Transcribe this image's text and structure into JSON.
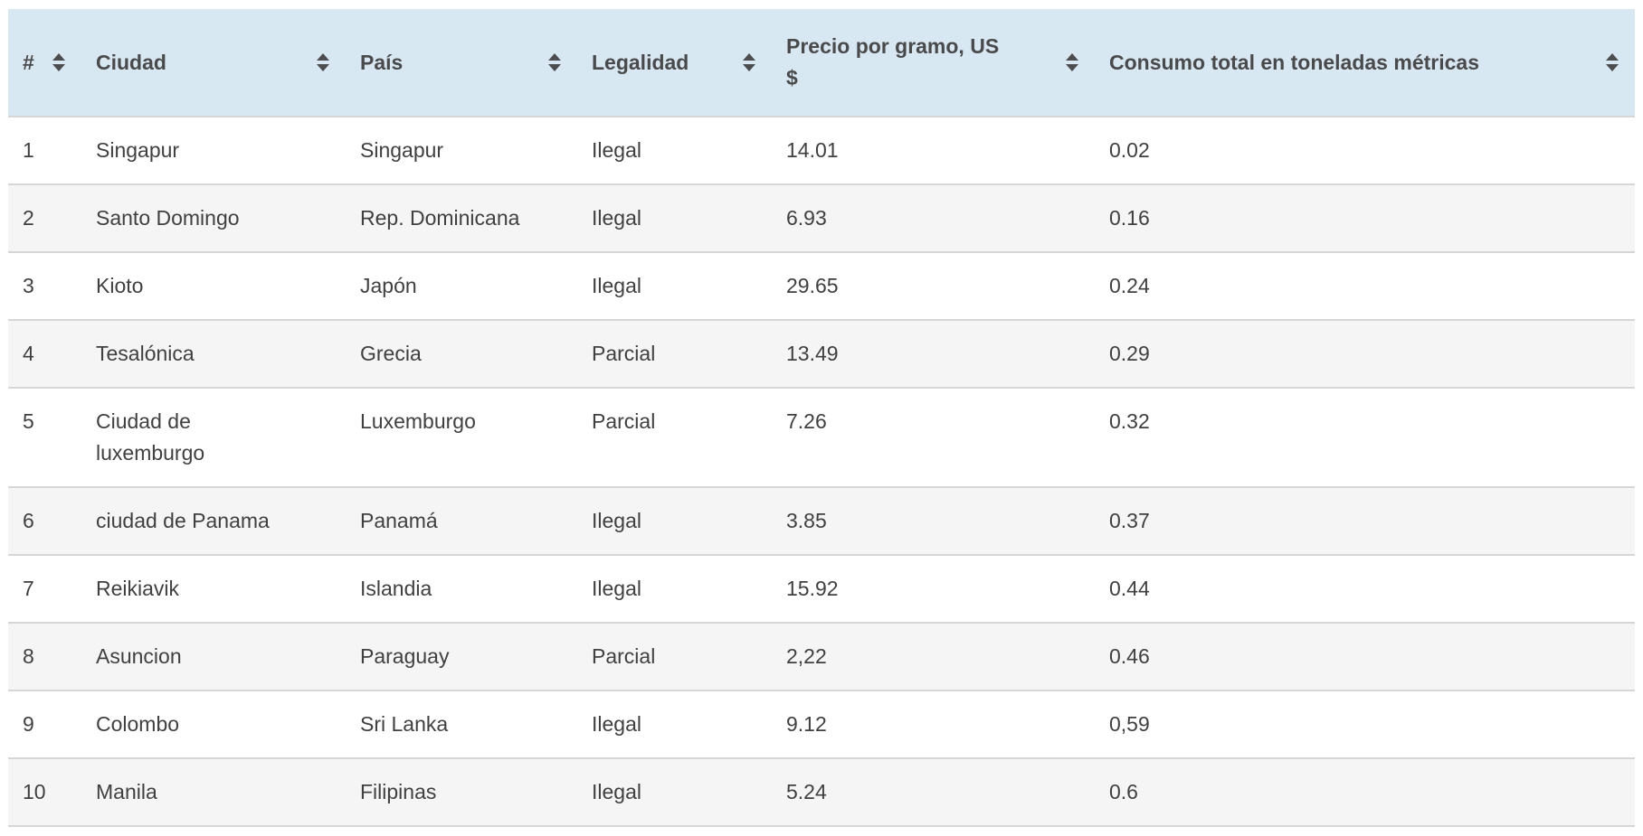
{
  "table": {
    "style": {
      "header_bg": "#d7e8f3",
      "header_text": "#4a4a4a",
      "body_text": "#404040",
      "stripe_bg": "#f5f5f5",
      "row_border": "#d6d6d6",
      "sort_icon_color": "#4d4d4d"
    },
    "columns": [
      {
        "id": "rank",
        "label": "#",
        "sortable": true
      },
      {
        "id": "ciudad",
        "label": "Ciudad",
        "sortable": true
      },
      {
        "id": "pais",
        "label": "País",
        "sortable": true
      },
      {
        "id": "legalidad",
        "label": "Legalidad",
        "sortable": true
      },
      {
        "id": "precio",
        "label": "Precio por gramo, US $",
        "sortable": true
      },
      {
        "id": "consumo",
        "label": "Consumo total en toneladas métricas",
        "sortable": true
      }
    ],
    "rows": [
      [
        "1",
        "Singapur",
        "Singapur",
        "Ilegal",
        "14.01",
        "0.02"
      ],
      [
        "2",
        "Santo Domingo",
        "Rep. Dominicana",
        "Ilegal",
        "6.93",
        "0.16"
      ],
      [
        "3",
        "Kioto",
        "Japón",
        "Ilegal",
        "29.65",
        "0.24"
      ],
      [
        "4",
        "Tesalónica",
        "Grecia",
        "Parcial",
        "13.49",
        "0.29"
      ],
      [
        "5",
        "Ciudad de luxemburgo",
        "Luxemburgo",
        "Parcial",
        "7.26",
        "0.32"
      ],
      [
        "6",
        "ciudad de Panama",
        "Panamá",
        "Ilegal",
        "3.85",
        "0.37"
      ],
      [
        "7",
        "Reikiavik",
        "Islandia",
        "Ilegal",
        "15.92",
        "0.44"
      ],
      [
        "8",
        "Asuncion",
        "Paraguay",
        "Parcial",
        "2,22",
        "0.46"
      ],
      [
        "9",
        "Colombo",
        "Sri Lanka",
        "Ilegal",
        "9.12",
        "0,59"
      ],
      [
        "10",
        "Manila",
        "Filipinas",
        "Ilegal",
        "5.24",
        "0.6"
      ]
    ]
  }
}
